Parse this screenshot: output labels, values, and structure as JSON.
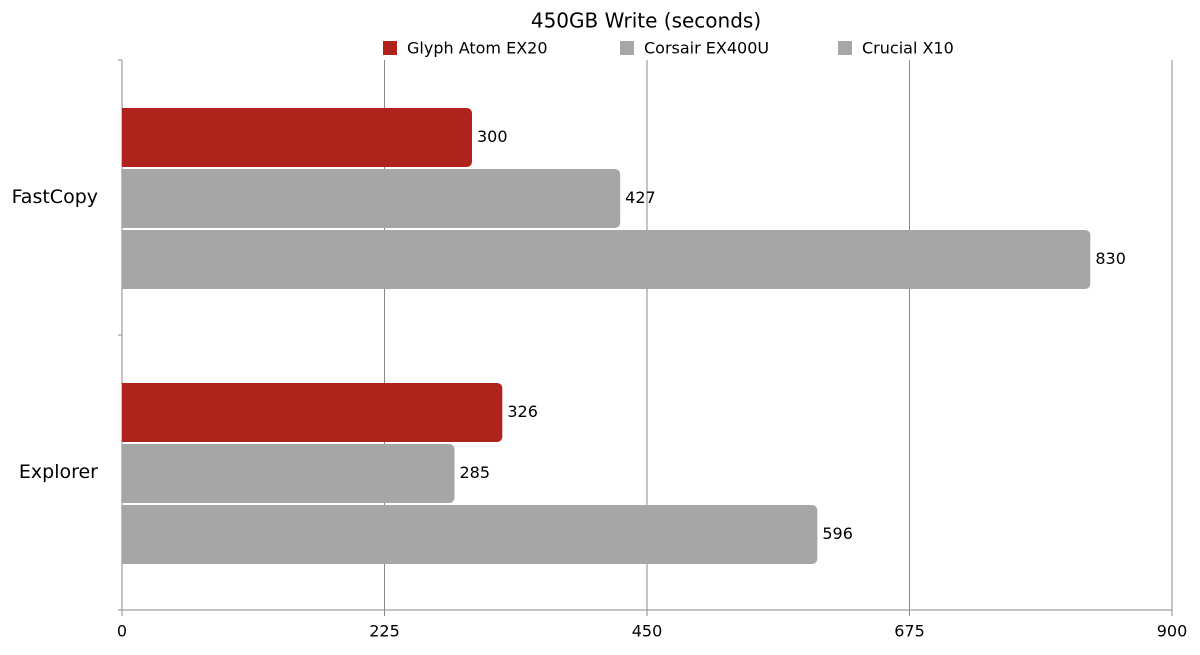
{
  "chart_data": {
    "type": "hbar",
    "title": "450GB Write (seconds)",
    "categories": [
      "FastCopy",
      "Explorer"
    ],
    "series": [
      {
        "name": "Glyph Atom EX20",
        "color": "#b0231d",
        "values": [
          300,
          326
        ]
      },
      {
        "name": "Corsair EX400U",
        "color": "#a6a6a6",
        "values": [
          427,
          285
        ]
      },
      {
        "name": "Crucial X10",
        "color": "#a6a6a6",
        "values": [
          830,
          596
        ]
      }
    ],
    "xlim": [
      0,
      900
    ],
    "xticks": [
      0,
      225,
      450,
      675,
      900
    ],
    "grid": true
  }
}
